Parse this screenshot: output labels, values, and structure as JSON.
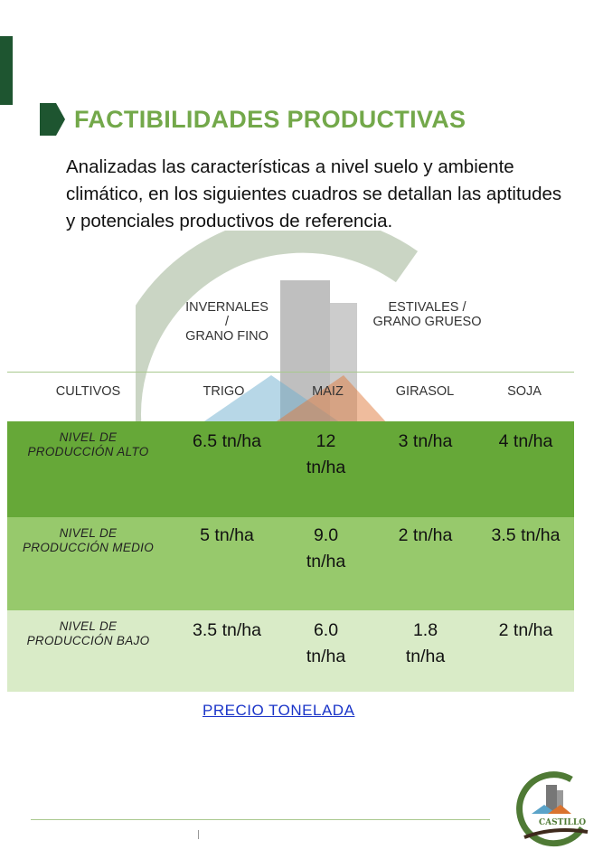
{
  "title": "FACTIBILIDADES PRODUCTIVAS",
  "intro": "Analizadas las características a nivel suelo y ambiente climático, en los siguientes cuadros se detallan las aptitudes y potenciales productivos de referencia.",
  "groups": {
    "invernales_line1": "INVERNALES",
    "invernales_line2": "/",
    "invernales_line3": "GRANO FINO",
    "estivales_line1": "ESTIVALES /",
    "estivales_line2": "GRANO GRUESO"
  },
  "columns": {
    "cultivos": "CULTIVOS",
    "trigo": "TRIGO",
    "maiz": "MAIZ",
    "girasol": "GIRASOL",
    "soja": "SOJA"
  },
  "rows": [
    {
      "label_line1": "NIVEL DE",
      "label_line2": "PRODUCCIÓN ALTO",
      "trigo": "6.5 tn/ha",
      "maiz_line1": "12",
      "maiz_line2": "tn/ha",
      "girasol_line1": "3 tn/ha",
      "girasol_line2": "",
      "soja": "4 tn/ha"
    },
    {
      "label_line1": "NIVEL DE",
      "label_line2": "PRODUCCIÓN MEDIO",
      "trigo": "5 tn/ha",
      "maiz_line1": "9.0",
      "maiz_line2": "tn/ha",
      "girasol_line1": "2 tn/ha",
      "girasol_line2": "",
      "soja": "3.5 tn/ha"
    },
    {
      "label_line1": "NIVEL DE",
      "label_line2": "PRODUCCIÓN BAJO",
      "trigo": "3.5 tn/ha",
      "maiz_line1": "6.0",
      "maiz_line2": "tn/ha",
      "girasol_line1": "1.8",
      "girasol_line2": "tn/ha",
      "soja": "2 tn/ha"
    }
  ],
  "price_link": "PRECIO TONELADA",
  "logo_text": "CASTILLO",
  "watermark_text": "CASTILLO",
  "colors": {
    "title_green": "#73a84a",
    "dark_green": "#1e5530",
    "row_alto": "#66a838",
    "row_medio": "#97c96c",
    "row_bajo": "#d9ebc7",
    "link_blue": "#1a34c8"
  }
}
